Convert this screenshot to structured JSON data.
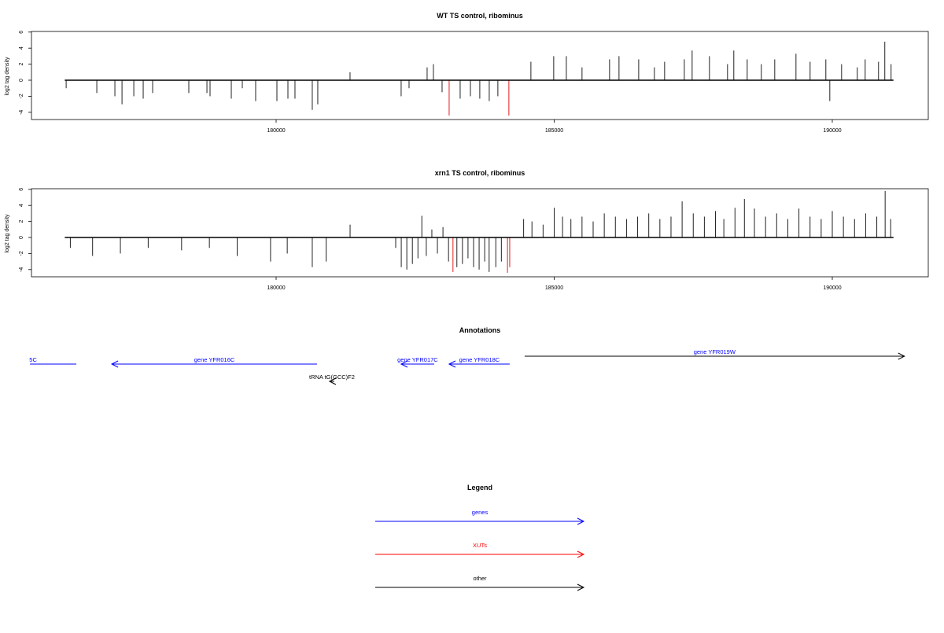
{
  "chart_data": [
    {
      "type": "bar",
      "title": "WT TS control, ribominus",
      "ylabel": "log2 tag density",
      "xlabel": "",
      "ylim": [
        -4.6,
        6
      ],
      "xlim": [
        175600,
        191800
      ],
      "baseline": [
        176200,
        191100
      ],
      "yticks": [
        "-4",
        "-2",
        "0",
        "2",
        "4",
        "6"
      ],
      "xticks": [
        "180000",
        "185000",
        "190000"
      ],
      "highlight_color": "#e41a1c",
      "spikes": [
        {
          "x": 176225,
          "y": -1
        },
        {
          "x": 176776,
          "y": -1.6
        },
        {
          "x": 177101,
          "y": -2
        },
        {
          "x": 177229,
          "y": -3
        },
        {
          "x": 177441,
          "y": -2
        },
        {
          "x": 177610,
          "y": -2.3
        },
        {
          "x": 177780,
          "y": -1.6
        },
        {
          "x": 178430,
          "y": -1.6
        },
        {
          "x": 178756,
          "y": -1.6
        },
        {
          "x": 178812,
          "y": -2
        },
        {
          "x": 179194,
          "y": -2.3
        },
        {
          "x": 179392,
          "y": -1
        },
        {
          "x": 179632,
          "y": -2.6
        },
        {
          "x": 180014,
          "y": -2.6
        },
        {
          "x": 180212,
          "y": -2.3
        },
        {
          "x": 180339,
          "y": -2.3
        },
        {
          "x": 180650,
          "y": -3.7
        },
        {
          "x": 180749,
          "y": -3
        },
        {
          "x": 181329,
          "y": 1
        },
        {
          "x": 182248,
          "y": -2
        },
        {
          "x": 182390,
          "y": -1
        },
        {
          "x": 182715,
          "y": 1.6
        },
        {
          "x": 182828,
          "y": 2
        },
        {
          "x": 182984,
          "y": -1.5
        },
        {
          "x": 183111,
          "y": -4.4,
          "red": true
        },
        {
          "x": 183309,
          "y": -2.3
        },
        {
          "x": 183493,
          "y": -2
        },
        {
          "x": 183662,
          "y": -2.3
        },
        {
          "x": 183832,
          "y": -2.6
        },
        {
          "x": 183987,
          "y": -2
        },
        {
          "x": 184185,
          "y": -4.4,
          "red": true
        },
        {
          "x": 184581,
          "y": 2.3
        },
        {
          "x": 184991,
          "y": 3
        },
        {
          "x": 185218,
          "y": 3
        },
        {
          "x": 185500,
          "y": 1.6
        },
        {
          "x": 185995,
          "y": 2.6
        },
        {
          "x": 186165,
          "y": 3
        },
        {
          "x": 186519,
          "y": 2.6
        },
        {
          "x": 186801,
          "y": 1.6
        },
        {
          "x": 186985,
          "y": 2.3
        },
        {
          "x": 187339,
          "y": 2.6
        },
        {
          "x": 187480,
          "y": 3.7
        },
        {
          "x": 187791,
          "y": 3
        },
        {
          "x": 188116,
          "y": 2
        },
        {
          "x": 188229,
          "y": 3.7
        },
        {
          "x": 188470,
          "y": 2.6
        },
        {
          "x": 188724,
          "y": 2
        },
        {
          "x": 188965,
          "y": 2.6
        },
        {
          "x": 189347,
          "y": 3.3
        },
        {
          "x": 189601,
          "y": 2.3
        },
        {
          "x": 189884,
          "y": 2.6
        },
        {
          "x": 189955,
          "y": -2.6
        },
        {
          "x": 190167,
          "y": 2
        },
        {
          "x": 190449,
          "y": 1.6
        },
        {
          "x": 190591,
          "y": 2.6
        },
        {
          "x": 190831,
          "y": 2.3
        },
        {
          "x": 190944,
          "y": 4.8
        },
        {
          "x": 191057,
          "y": 2
        }
      ]
    },
    {
      "type": "bar",
      "title": "xrn1 TS control, ribominus",
      "ylabel": "log2 tag density",
      "xlabel": "",
      "ylim": [
        -4.6,
        6
      ],
      "xlim": [
        175600,
        191800
      ],
      "baseline": [
        176200,
        191100
      ],
      "yticks": [
        "-4",
        "-2",
        "0",
        "2",
        "4",
        "6"
      ],
      "xticks": [
        "180000",
        "185000",
        "190000"
      ],
      "highlight_color": "#e41a1c",
      "spikes": [
        {
          "x": 176300,
          "y": -1.3
        },
        {
          "x": 176700,
          "y": -2.3
        },
        {
          "x": 177200,
          "y": -2
        },
        {
          "x": 177700,
          "y": -1.3
        },
        {
          "x": 178300,
          "y": -1.6
        },
        {
          "x": 178800,
          "y": -1.3
        },
        {
          "x": 179300,
          "y": -2.3
        },
        {
          "x": 179900,
          "y": -3
        },
        {
          "x": 180200,
          "y": -2
        },
        {
          "x": 180650,
          "y": -3.7
        },
        {
          "x": 180900,
          "y": -3
        },
        {
          "x": 181330,
          "y": 1.6
        },
        {
          "x": 182150,
          "y": -1.3
        },
        {
          "x": 182250,
          "y": -3.7
        },
        {
          "x": 182350,
          "y": -4
        },
        {
          "x": 182450,
          "y": -3.3
        },
        {
          "x": 182550,
          "y": -2.6
        },
        {
          "x": 182620,
          "y": 2.7
        },
        {
          "x": 182700,
          "y": -2.3
        },
        {
          "x": 182800,
          "y": 1
        },
        {
          "x": 182900,
          "y": -2
        },
        {
          "x": 183000,
          "y": 1.3
        },
        {
          "x": 183100,
          "y": -3
        },
        {
          "x": 183180,
          "y": -4.3,
          "red": true
        },
        {
          "x": 183250,
          "y": -3.7
        },
        {
          "x": 183350,
          "y": -3.3
        },
        {
          "x": 183450,
          "y": -2.6
        },
        {
          "x": 183550,
          "y": -3.7
        },
        {
          "x": 183650,
          "y": -4
        },
        {
          "x": 183750,
          "y": -3
        },
        {
          "x": 183830,
          "y": -4.3
        },
        {
          "x": 183950,
          "y": -3.7
        },
        {
          "x": 184050,
          "y": -3
        },
        {
          "x": 184160,
          "y": -4.4,
          "red": true
        },
        {
          "x": 184200,
          "y": -3.7,
          "red": true
        },
        {
          "x": 184450,
          "y": 2.3
        },
        {
          "x": 184600,
          "y": 2
        },
        {
          "x": 184800,
          "y": 1.6
        },
        {
          "x": 185000,
          "y": 3.7
        },
        {
          "x": 185150,
          "y": 2.6
        },
        {
          "x": 185300,
          "y": 2.3
        },
        {
          "x": 185500,
          "y": 2.6
        },
        {
          "x": 185700,
          "y": 2
        },
        {
          "x": 185900,
          "y": 3
        },
        {
          "x": 186100,
          "y": 2.6
        },
        {
          "x": 186300,
          "y": 2.3
        },
        {
          "x": 186500,
          "y": 2.6
        },
        {
          "x": 186700,
          "y": 3
        },
        {
          "x": 186900,
          "y": 2.3
        },
        {
          "x": 187100,
          "y": 2.6
        },
        {
          "x": 187300,
          "y": 4.5
        },
        {
          "x": 187500,
          "y": 3
        },
        {
          "x": 187700,
          "y": 2.6
        },
        {
          "x": 187900,
          "y": 3.3
        },
        {
          "x": 188050,
          "y": 2.3
        },
        {
          "x": 188250,
          "y": 3.7
        },
        {
          "x": 188420,
          "y": 4.8
        },
        {
          "x": 188600,
          "y": 3.6
        },
        {
          "x": 188800,
          "y": 2.6
        },
        {
          "x": 189000,
          "y": 3
        },
        {
          "x": 189200,
          "y": 2.3
        },
        {
          "x": 189400,
          "y": 3.6
        },
        {
          "x": 189600,
          "y": 2.6
        },
        {
          "x": 189800,
          "y": 2.3
        },
        {
          "x": 190000,
          "y": 3.3
        },
        {
          "x": 190200,
          "y": 2.6
        },
        {
          "x": 190400,
          "y": 2.3
        },
        {
          "x": 190600,
          "y": 3
        },
        {
          "x": 190800,
          "y": 2.6
        },
        {
          "x": 190950,
          "y": 5.8
        },
        {
          "x": 191050,
          "y": 2.3
        }
      ]
    }
  ],
  "annotations": {
    "title": "Annotations",
    "features": [
      {
        "label": "5C",
        "start": 176408,
        "end": 175574,
        "strand": "-",
        "color": "#0000ff",
        "arrow": false,
        "row": 1
      },
      {
        "label": "gene YFR016C",
        "start": 180735,
        "end": 177045,
        "strand": "-",
        "color": "#0000ff",
        "arrow": true,
        "row": 1
      },
      {
        "label": "gene YFR017C",
        "start": 182842,
        "end": 182248,
        "strand": "-",
        "color": "#0000ff",
        "arrow": true,
        "row": 1
      },
      {
        "label": "gene YFR018C",
        "start": 184200,
        "end": 183111,
        "strand": "-",
        "color": "#0000ff",
        "arrow": true,
        "row": 1
      },
      {
        "label": "gene YFR019W",
        "start": 184468,
        "end": 191298,
        "strand": "+",
        "color": "#000000",
        "labelColor": "#0000ff",
        "arrow": true,
        "row": 0
      },
      {
        "label": "tRNA tG(GCC)F2",
        "start": 181046,
        "end": 180961,
        "strand": "-",
        "color": "#000000",
        "arrow": true,
        "row": 2
      }
    ]
  },
  "legend": {
    "title": "Legend",
    "items": [
      {
        "label": "genes",
        "color": "#0000ff"
      },
      {
        "label": "XUTs",
        "color": "#ff0000"
      },
      {
        "label": "other",
        "color": "#000000"
      }
    ]
  }
}
